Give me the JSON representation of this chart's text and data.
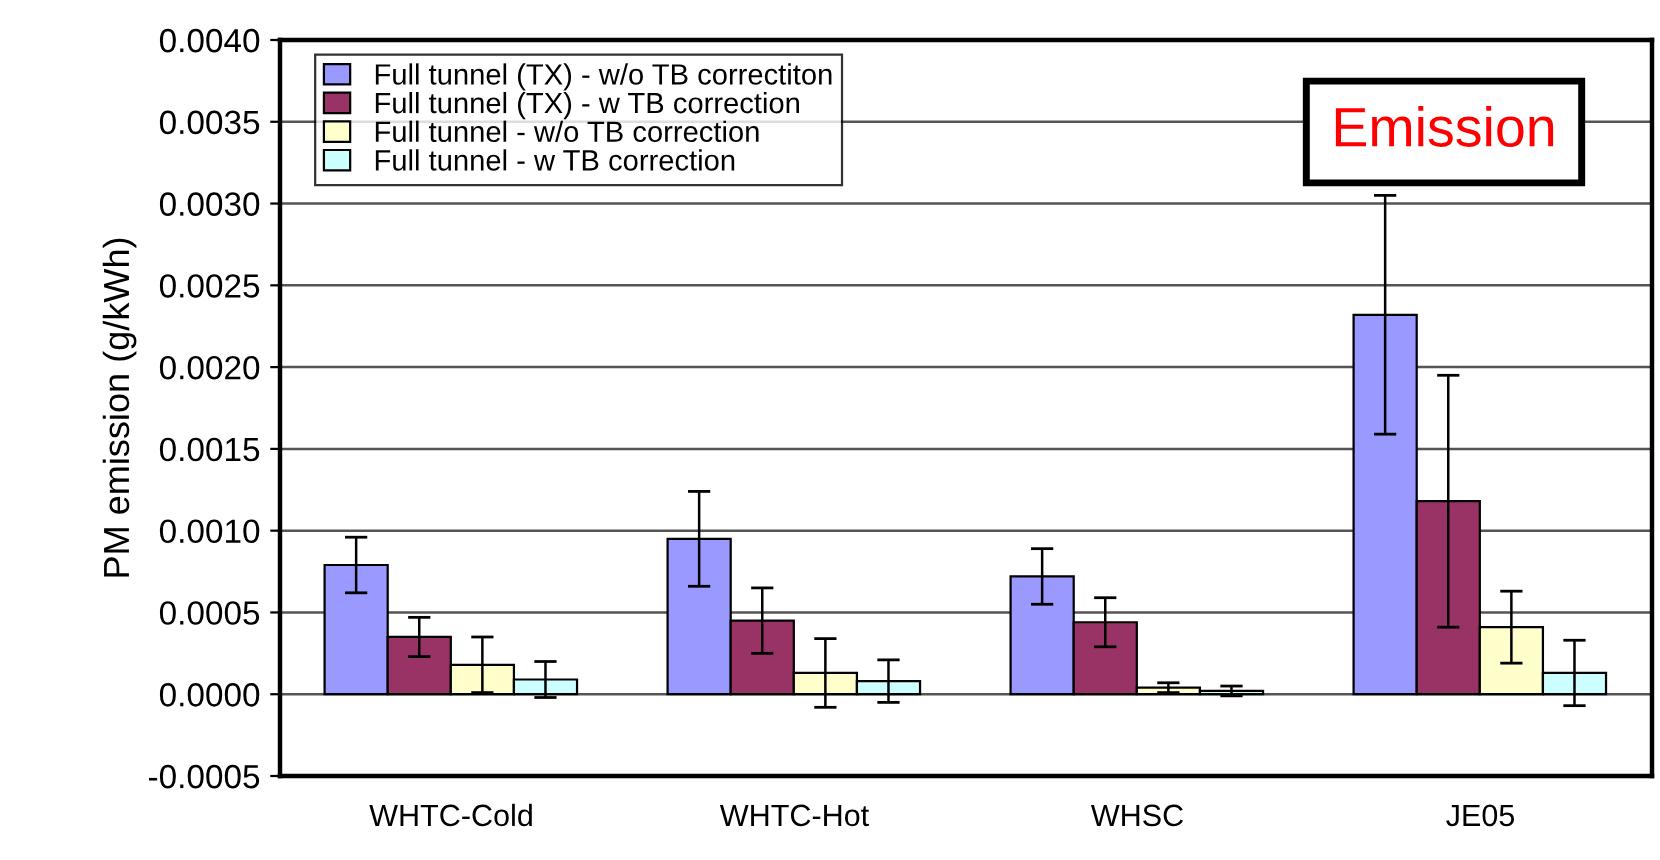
{
  "chart_data": {
    "type": "bar",
    "ylabel": "PM emission (g/kWh)",
    "categories": [
      "WHTC-Cold",
      "WHTC-Hot",
      "WHSC",
      "JE05"
    ],
    "series": [
      {
        "name": "Full tunnel (TX) - w/o TB correctiton",
        "color": "#9999ff",
        "values": [
          0.00079,
          0.00095,
          0.00072,
          0.00232
        ],
        "errors": [
          0.00017,
          0.00029,
          0.00017,
          0.00073
        ]
      },
      {
        "name": "Full tunnel (TX) - w TB correction",
        "color": "#993366",
        "values": [
          0.00035,
          0.00045,
          0.00044,
          0.00118
        ],
        "errors": [
          0.00012,
          0.0002,
          0.00015,
          0.00077
        ]
      },
      {
        "name": "Full tunnel - w/o TB correction",
        "color": "#ffffcc",
        "values": [
          0.00018,
          0.00013,
          4e-05,
          0.00041
        ],
        "errors": [
          0.00017,
          0.00021,
          3e-05,
          0.00022
        ]
      },
      {
        "name": "Full tunnel - w TB correction",
        "color": "#ccffff",
        "values": [
          9e-05,
          8e-05,
          2e-05,
          0.00013
        ],
        "errors": [
          0.00011,
          0.00013,
          3e-05,
          0.0002
        ]
      }
    ],
    "ylim": [
      -0.0005,
      0.004
    ],
    "yticks": [
      {
        "value": -0.0005,
        "label": "-0.0005"
      },
      {
        "value": 0,
        "label": "0.0000"
      },
      {
        "value": 0.0005,
        "label": "0.0005"
      },
      {
        "value": 0.001,
        "label": "0.0010"
      },
      {
        "value": 0.0015,
        "label": "0.0015"
      },
      {
        "value": 0.002,
        "label": "0.0020"
      },
      {
        "value": 0.0025,
        "label": "0.0025"
      },
      {
        "value": 0.003,
        "label": "0.0030"
      },
      {
        "value": 0.0035,
        "label": "0.0035"
      },
      {
        "value": 0.004,
        "label": "0.0040"
      }
    ],
    "grid": "y",
    "legend": "top left",
    "annotations": [
      "Emission"
    ]
  }
}
